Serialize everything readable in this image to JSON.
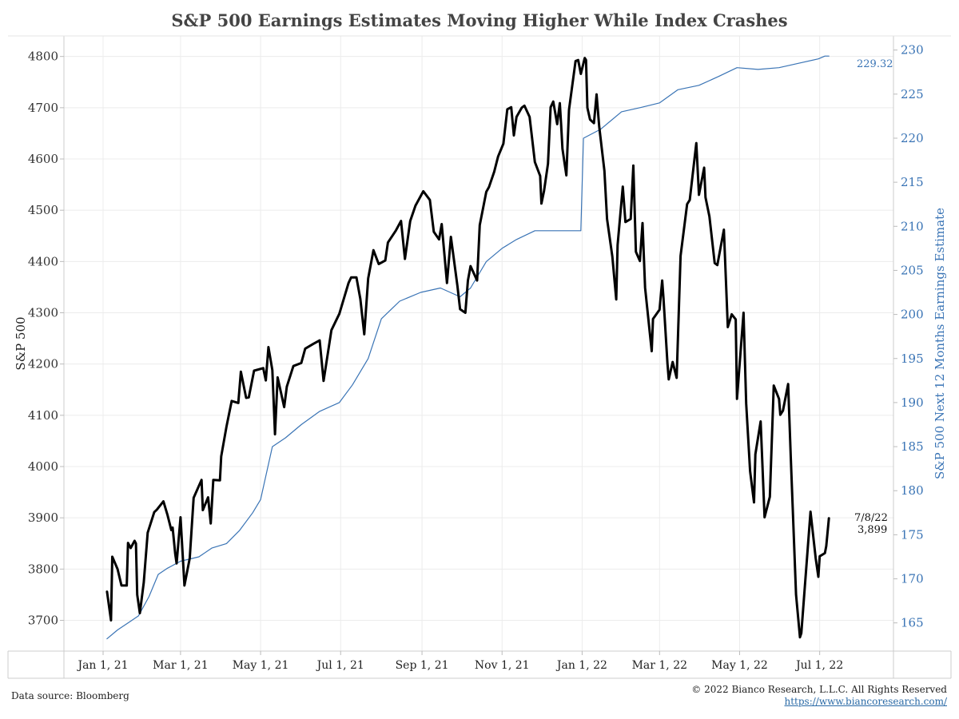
{
  "chart_data": {
    "type": "line",
    "title": "S&P 500 Earnings Estimates Moving Higher While Index Crashes",
    "ylabel_left": "S&P 500",
    "ylabel_right": "S&P 500 Next 12 Months Earnings Estimate",
    "ylim_left": [
      3640,
      4840
    ],
    "ylim_right": [
      161.8,
      231.6
    ],
    "yticks_left": [
      3700,
      3800,
      3900,
      4000,
      4100,
      4200,
      4300,
      4400,
      4500,
      4600,
      4700,
      4800
    ],
    "yticks_right": [
      165,
      170,
      175,
      180,
      185,
      190,
      195,
      200,
      205,
      210,
      215,
      220,
      225,
      230
    ],
    "xticks": [
      {
        "label": "Jan 1, 21",
        "date": "2021-01-01"
      },
      {
        "label": "Mar 1, 21",
        "date": "2021-03-01"
      },
      {
        "label": "May 1, 21",
        "date": "2021-05-01"
      },
      {
        "label": "Jul 1, 21",
        "date": "2021-07-01"
      },
      {
        "label": "Sep 1, 21",
        "date": "2021-09-01"
      },
      {
        "label": "Nov 1, 21",
        "date": "2021-11-01"
      },
      {
        "label": "Jan 1, 22",
        "date": "2022-01-01"
      },
      {
        "label": "Mar 1, 22",
        "date": "2022-03-01"
      },
      {
        "label": "May 1, 22",
        "date": "2022-05-01"
      },
      {
        "label": "Jul 1, 22",
        "date": "2022-07-01"
      }
    ],
    "grid": true,
    "series": [
      {
        "name": "S&P 500",
        "axis": "left",
        "color": "#000000",
        "points": [
          [
            "2021-01-04",
            3756
          ],
          [
            "2021-01-07",
            3700
          ],
          [
            "2021-01-08",
            3824
          ],
          [
            "2021-01-12",
            3800
          ],
          [
            "2021-01-15",
            3768
          ],
          [
            "2021-01-19",
            3768
          ],
          [
            "2021-01-20",
            3851
          ],
          [
            "2021-01-22",
            3841
          ],
          [
            "2021-01-25",
            3855
          ],
          [
            "2021-01-26",
            3850
          ],
          [
            "2021-01-27",
            3750
          ],
          [
            "2021-01-29",
            3714
          ],
          [
            "2021-02-01",
            3774
          ],
          [
            "2021-02-04",
            3871
          ],
          [
            "2021-02-09",
            3911
          ],
          [
            "2021-02-11",
            3916
          ],
          [
            "2021-02-16",
            3932
          ],
          [
            "2021-02-19",
            3906
          ],
          [
            "2021-02-22",
            3876
          ],
          [
            "2021-02-23",
            3881
          ],
          [
            "2021-02-25",
            3829
          ],
          [
            "2021-02-26",
            3811
          ],
          [
            "2021-03-01",
            3901
          ],
          [
            "2021-03-04",
            3768
          ],
          [
            "2021-03-08",
            3821
          ],
          [
            "2021-03-11",
            3939
          ],
          [
            "2021-03-17",
            3974
          ],
          [
            "2021-03-18",
            3915
          ],
          [
            "2021-03-22",
            3940
          ],
          [
            "2021-03-24",
            3889
          ],
          [
            "2021-03-26",
            3974
          ],
          [
            "2021-03-31",
            3973
          ],
          [
            "2021-04-01",
            4020
          ],
          [
            "2021-04-05",
            4078
          ],
          [
            "2021-04-09",
            4128
          ],
          [
            "2021-04-14",
            4124
          ],
          [
            "2021-04-16",
            4185
          ],
          [
            "2021-04-20",
            4134
          ],
          [
            "2021-04-22",
            4135
          ],
          [
            "2021-04-26",
            4187
          ],
          [
            "2021-05-03",
            4192
          ],
          [
            "2021-05-05",
            4168
          ],
          [
            "2021-05-07",
            4233
          ],
          [
            "2021-05-10",
            4188
          ],
          [
            "2021-05-12",
            4063
          ],
          [
            "2021-05-14",
            4174
          ],
          [
            "2021-05-19",
            4116
          ],
          [
            "2021-05-21",
            4156
          ],
          [
            "2021-05-26",
            4196
          ],
          [
            "2021-06-01",
            4202
          ],
          [
            "2021-06-04",
            4230
          ],
          [
            "2021-06-10",
            4239
          ],
          [
            "2021-06-15",
            4246
          ],
          [
            "2021-06-18",
            4167
          ],
          [
            "2021-06-24",
            4266
          ],
          [
            "2021-06-30",
            4298
          ],
          [
            "2021-07-07",
            4358
          ],
          [
            "2021-07-09",
            4369
          ],
          [
            "2021-07-13",
            4369
          ],
          [
            "2021-07-16",
            4327
          ],
          [
            "2021-07-19",
            4258
          ],
          [
            "2021-07-22",
            4367
          ],
          [
            "2021-07-26",
            4422
          ],
          [
            "2021-07-30",
            4395
          ],
          [
            "2021-08-04",
            4402
          ],
          [
            "2021-08-06",
            4437
          ],
          [
            "2021-08-12",
            4460
          ],
          [
            "2021-08-16",
            4479
          ],
          [
            "2021-08-19",
            4405
          ],
          [
            "2021-08-23",
            4479
          ],
          [
            "2021-08-27",
            4509
          ],
          [
            "2021-09-02",
            4537
          ],
          [
            "2021-09-07",
            4520
          ],
          [
            "2021-09-10",
            4458
          ],
          [
            "2021-09-14",
            4443
          ],
          [
            "2021-09-16",
            4473
          ],
          [
            "2021-09-20",
            4358
          ],
          [
            "2021-09-23",
            4448
          ],
          [
            "2021-09-28",
            4352
          ],
          [
            "2021-09-30",
            4307
          ],
          [
            "2021-10-04",
            4300
          ],
          [
            "2021-10-06",
            4363
          ],
          [
            "2021-10-08",
            4391
          ],
          [
            "2021-10-13",
            4363
          ],
          [
            "2021-10-15",
            4471
          ],
          [
            "2021-10-20",
            4536
          ],
          [
            "2021-10-22",
            4545
          ],
          [
            "2021-10-26",
            4575
          ],
          [
            "2021-10-29",
            4605
          ],
          [
            "2021-11-02",
            4630
          ],
          [
            "2021-11-05",
            4697
          ],
          [
            "2021-11-08",
            4701
          ],
          [
            "2021-11-10",
            4646
          ],
          [
            "2021-11-12",
            4682
          ],
          [
            "2021-11-16",
            4700
          ],
          [
            "2021-11-18",
            4704
          ],
          [
            "2021-11-22",
            4682
          ],
          [
            "2021-11-26",
            4594
          ],
          [
            "2021-11-30",
            4567
          ],
          [
            "2021-12-01",
            4513
          ],
          [
            "2021-12-03",
            4538
          ],
          [
            "2021-12-06",
            4591
          ],
          [
            "2021-12-08",
            4701
          ],
          [
            "2021-12-10",
            4712
          ],
          [
            "2021-12-13",
            4668
          ],
          [
            "2021-12-15",
            4709
          ],
          [
            "2021-12-16",
            4668
          ],
          [
            "2021-12-17",
            4620
          ],
          [
            "2021-12-20",
            4568
          ],
          [
            "2021-12-22",
            4696
          ],
          [
            "2021-12-27",
            4791
          ],
          [
            "2021-12-29",
            4793
          ],
          [
            "2021-12-31",
            4766
          ],
          [
            "2022-01-03",
            4797
          ],
          [
            "2022-01-04",
            4793
          ],
          [
            "2022-01-05",
            4700
          ],
          [
            "2022-01-07",
            4677
          ],
          [
            "2022-01-10",
            4670
          ],
          [
            "2022-01-12",
            4726
          ],
          [
            "2022-01-14",
            4663
          ],
          [
            "2022-01-18",
            4577
          ],
          [
            "2022-01-20",
            4483
          ],
          [
            "2022-01-24",
            4410
          ],
          [
            "2022-01-27",
            4326
          ],
          [
            "2022-01-28",
            4432
          ],
          [
            "2022-02-01",
            4546
          ],
          [
            "2022-02-03",
            4477
          ],
          [
            "2022-02-07",
            4483
          ],
          [
            "2022-02-09",
            4587
          ],
          [
            "2022-02-11",
            4419
          ],
          [
            "2022-02-14",
            4401
          ],
          [
            "2022-02-16",
            4475
          ],
          [
            "2022-02-18",
            4349
          ],
          [
            "2022-02-23",
            4225
          ],
          [
            "2022-02-24",
            4288
          ],
          [
            "2022-03-01",
            4306
          ],
          [
            "2022-03-03",
            4363
          ],
          [
            "2022-03-04",
            4329
          ],
          [
            "2022-03-07",
            4201
          ],
          [
            "2022-03-08",
            4170
          ],
          [
            "2022-03-11",
            4204
          ],
          [
            "2022-03-14",
            4173
          ],
          [
            "2022-03-17",
            4411
          ],
          [
            "2022-03-22",
            4512
          ],
          [
            "2022-03-24",
            4520
          ],
          [
            "2022-03-29",
            4631
          ],
          [
            "2022-03-31",
            4530
          ],
          [
            "2022-04-04",
            4583
          ],
          [
            "2022-04-05",
            4525
          ],
          [
            "2022-04-08",
            4488
          ],
          [
            "2022-04-12",
            4397
          ],
          [
            "2022-04-14",
            4393
          ],
          [
            "2022-04-19",
            4462
          ],
          [
            "2022-04-22",
            4272
          ],
          [
            "2022-04-25",
            4297
          ],
          [
            "2022-04-28",
            4287
          ],
          [
            "2022-04-29",
            4132
          ],
          [
            "2022-05-04",
            4300
          ],
          [
            "2022-05-06",
            4123
          ],
          [
            "2022-05-09",
            3991
          ],
          [
            "2022-05-12",
            3930
          ],
          [
            "2022-05-13",
            4024
          ],
          [
            "2022-05-17",
            4088
          ],
          [
            "2022-05-20",
            3901
          ],
          [
            "2022-05-24",
            3941
          ],
          [
            "2022-05-27",
            4158
          ],
          [
            "2022-05-31",
            4132
          ],
          [
            "2022-06-01",
            4101
          ],
          [
            "2022-06-03",
            4109
          ],
          [
            "2022-06-07",
            4161
          ],
          [
            "2022-06-09",
            4018
          ],
          [
            "2022-06-13",
            3750
          ],
          [
            "2022-06-16",
            3667
          ],
          [
            "2022-06-17",
            3675
          ],
          [
            "2022-06-24",
            3912
          ],
          [
            "2022-06-28",
            3821
          ],
          [
            "2022-06-30",
            3785
          ],
          [
            "2022-07-01",
            3825
          ],
          [
            "2022-07-05",
            3831
          ],
          [
            "2022-07-06",
            3845
          ],
          [
            "2022-07-08",
            3899
          ]
        ]
      },
      {
        "name": "S&P 500 Next 12 Months Earnings Estimate",
        "axis": "right",
        "color": "#3a74b5",
        "points": [
          [
            "2021-01-04",
            163.2
          ],
          [
            "2021-01-12",
            164.2
          ],
          [
            "2021-01-20",
            165.0
          ],
          [
            "2021-01-28",
            165.8
          ],
          [
            "2021-02-05",
            168.0
          ],
          [
            "2021-02-12",
            170.5
          ],
          [
            "2021-02-19",
            171.2
          ],
          [
            "2021-03-01",
            172.0
          ],
          [
            "2021-03-15",
            172.5
          ],
          [
            "2021-03-25",
            173.5
          ],
          [
            "2021-04-05",
            174.0
          ],
          [
            "2021-04-15",
            175.5
          ],
          [
            "2021-04-25",
            177.5
          ],
          [
            "2021-05-01",
            179.0
          ],
          [
            "2021-05-10",
            185.0
          ],
          [
            "2021-05-20",
            186.0
          ],
          [
            "2021-06-01",
            187.5
          ],
          [
            "2021-06-15",
            189.0
          ],
          [
            "2021-06-30",
            190.0
          ],
          [
            "2021-07-10",
            192.0
          ],
          [
            "2021-07-22",
            195.0
          ],
          [
            "2021-08-01",
            199.5
          ],
          [
            "2021-08-15",
            201.5
          ],
          [
            "2021-08-31",
            202.5
          ],
          [
            "2021-09-15",
            203.0
          ],
          [
            "2021-09-30",
            202.0
          ],
          [
            "2021-10-08",
            203.0
          ],
          [
            "2021-10-20",
            206.0
          ],
          [
            "2021-11-01",
            207.5
          ],
          [
            "2021-11-12",
            208.5
          ],
          [
            "2021-11-26",
            209.5
          ],
          [
            "2021-12-10",
            209.5
          ],
          [
            "2021-12-24",
            209.5
          ],
          [
            "2021-12-31",
            209.5
          ],
          [
            "2022-01-02",
            220.0
          ],
          [
            "2022-01-15",
            221.0
          ],
          [
            "2022-01-31",
            223.0
          ],
          [
            "2022-02-15",
            223.5
          ],
          [
            "2022-03-01",
            224.0
          ],
          [
            "2022-03-15",
            225.5
          ],
          [
            "2022-03-31",
            226.0
          ],
          [
            "2022-04-15",
            227.0
          ],
          [
            "2022-04-29",
            228.0
          ],
          [
            "2022-05-15",
            227.8
          ],
          [
            "2022-05-31",
            228.0
          ],
          [
            "2022-06-15",
            228.5
          ],
          [
            "2022-06-30",
            229.0
          ],
          [
            "2022-07-05",
            229.32
          ],
          [
            "2022-07-08",
            229.32
          ]
        ]
      }
    ],
    "annotations": {
      "last_date": "7/8/22",
      "last_value": "3,899",
      "last_estimate": "229.32"
    }
  },
  "footer": {
    "source": "Data source: Bloomberg",
    "copyright": "© 2022 Bianco Research, L.L.C. All Rights Reserved",
    "url": "https://www.biancoresearch.com/"
  }
}
